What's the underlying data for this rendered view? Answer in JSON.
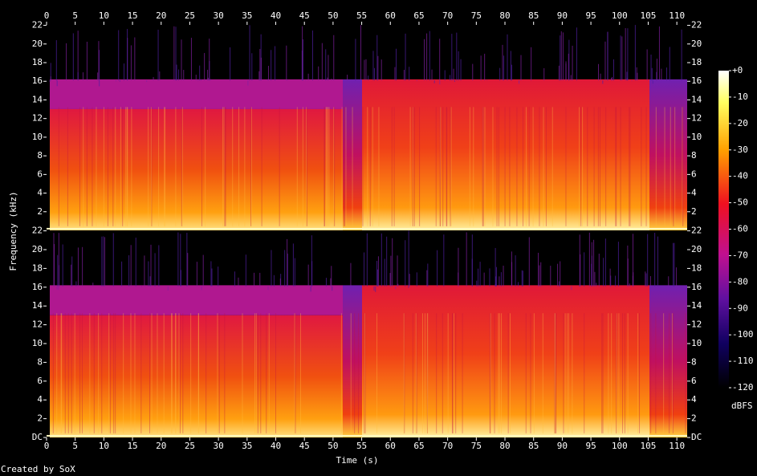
{
  "chart_data": {
    "type": "spectrogram",
    "xlabel": "Time (s)",
    "ylabel": "Frequency (kHz)",
    "footer": "Created by SoX",
    "xlim": [
      0,
      111.8
    ],
    "xticks": [
      0,
      5,
      10,
      15,
      20,
      25,
      30,
      35,
      40,
      45,
      50,
      55,
      60,
      65,
      70,
      75,
      80,
      85,
      90,
      95,
      100,
      105,
      110
    ],
    "channels": [
      {
        "ylim": [
          0,
          22.05
        ],
        "yticks": [
          2,
          4,
          6,
          8,
          10,
          12,
          14,
          16,
          18,
          20,
          22
        ]
      },
      {
        "ylim": [
          0,
          22.05
        ],
        "yticks": [
          {
            "value": 0,
            "label": "DC"
          },
          2,
          4,
          6,
          8,
          10,
          12,
          14,
          16,
          18,
          20,
          22
        ]
      }
    ],
    "colorbar": {
      "label": "dBFS",
      "zlim": [
        -120,
        0
      ],
      "ticks": [
        {
          "value": 0,
          "label": "+0"
        },
        -10,
        -20,
        -30,
        -40,
        -50,
        -60,
        -70,
        -80,
        -90,
        -100,
        -110,
        -120
      ]
    }
  }
}
